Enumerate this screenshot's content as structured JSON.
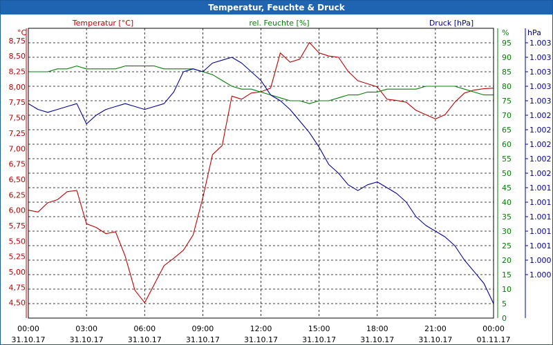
{
  "window": {
    "title": "Temperatur, Feuchte & Druck"
  },
  "chart_data": {
    "type": "line",
    "title": "Temperatur, Feuchte & Druck",
    "x_ticks": [
      {
        "time": "00:00",
        "date": "31.10.17"
      },
      {
        "time": "03:00",
        "date": "31.10.17"
      },
      {
        "time": "06:00",
        "date": "31.10.17"
      },
      {
        "time": "09:00",
        "date": "31.10.17"
      },
      {
        "time": "12:00",
        "date": "31.10.17"
      },
      {
        "time": "15:00",
        "date": "31.10.17"
      },
      {
        "time": "18:00",
        "date": "31.10.17"
      },
      {
        "time": "21:00",
        "date": "31.10.17"
      },
      {
        "time": "00:00",
        "date": "01.11.17"
      }
    ],
    "xlim_hours": [
      0,
      24
    ],
    "grid": true,
    "axes": {
      "temperature": {
        "label": "Temperatur [°C]",
        "unit": "°C",
        "color": "#c00000",
        "ylim": [
          4.25,
          8.95
        ],
        "ticks": [
          "8,75",
          "8,50",
          "8,25",
          "8,00",
          "7,75",
          "7,50",
          "7,25",
          "7,00",
          "6,75",
          "6,50",
          "6,25",
          "6,00",
          "5,75",
          "5,50",
          "5,25",
          "5,00",
          "4,75",
          "4,50"
        ],
        "tick_values": [
          8.75,
          8.5,
          8.25,
          8.0,
          7.75,
          7.5,
          7.25,
          7.0,
          6.75,
          6.5,
          6.25,
          6.0,
          5.75,
          5.5,
          5.25,
          5.0,
          4.75,
          4.5
        ]
      },
      "humidity": {
        "label": "rel. Feuchte [%]",
        "unit": "%",
        "color": "#008000",
        "ylim": [
          0,
          100
        ],
        "ticks": [
          "95",
          "90",
          "85",
          "80",
          "75",
          "70",
          "65",
          "60",
          "55",
          "50",
          "45",
          "40",
          "35",
          "30",
          "25",
          "20",
          "15",
          "10",
          "5",
          "0"
        ],
        "tick_values": [
          95,
          90,
          85,
          80,
          75,
          70,
          65,
          60,
          55,
          50,
          45,
          40,
          35,
          30,
          25,
          20,
          15,
          10,
          5,
          0
        ]
      },
      "pressure": {
        "label": "Druck [hPa]",
        "unit": "hPa",
        "color": "#0000a0",
        "ylim": [
          0,
          100
        ],
        "ticks": [
          "1.003",
          "1.003",
          "1.003",
          "1.003",
          "1.003",
          "1.002",
          "1.002",
          "1.002",
          "1.002",
          "1.002",
          "1.001",
          "1.001",
          "1.001",
          "1.001",
          "1.001",
          "1.000",
          "1.000"
        ],
        "tick_values": [
          95,
          90,
          85,
          80,
          75,
          70,
          65,
          60,
          55,
          50,
          45,
          40,
          35,
          30,
          25,
          20,
          15
        ]
      }
    },
    "series": [
      {
        "name": "Temperatur [°C]",
        "axis": "temperature",
        "color": "#c00000",
        "x": [
          0,
          0.5,
          1,
          1.5,
          2,
          2.5,
          3,
          3.5,
          4,
          4.5,
          5,
          5.5,
          6,
          6.5,
          7,
          7.5,
          8,
          8.5,
          9,
          9.5,
          10,
          10.5,
          11,
          11.5,
          12,
          12.5,
          13,
          13.5,
          14,
          14.5,
          15,
          15.5,
          16,
          16.5,
          17,
          17.5,
          18,
          18.5,
          19,
          19.5,
          20,
          20.5,
          21,
          21.5,
          22,
          22.5,
          23,
          23.5,
          24
        ],
        "values": [
          6.0,
          5.97,
          6.12,
          6.17,
          6.3,
          6.32,
          5.78,
          5.72,
          5.62,
          5.65,
          5.25,
          4.7,
          4.5,
          4.8,
          5.1,
          5.22,
          5.35,
          5.6,
          6.2,
          6.9,
          7.05,
          7.85,
          7.8,
          7.9,
          7.92,
          7.98,
          8.55,
          8.4,
          8.45,
          8.72,
          8.55,
          8.5,
          8.48,
          8.25,
          8.1,
          8.05,
          8.0,
          7.8,
          7.78,
          7.75,
          7.62,
          7.55,
          7.48,
          7.55,
          7.75,
          7.9,
          7.95,
          7.97,
          7.98
        ]
      },
      {
        "name": "rel. Feuchte [%]",
        "axis": "humidity",
        "color": "#008000",
        "x": [
          0,
          0.5,
          1,
          1.5,
          2,
          2.5,
          3,
          3.5,
          4,
          4.5,
          5,
          5.5,
          6,
          6.5,
          7,
          7.5,
          8,
          8.5,
          9,
          9.5,
          10,
          10.5,
          11,
          11.5,
          12,
          12.5,
          13,
          13.5,
          14,
          14.5,
          15,
          15.5,
          16,
          16.5,
          17,
          17.5,
          18,
          18.5,
          19,
          19.5,
          20,
          20.5,
          21,
          21.5,
          22,
          22.5,
          23,
          23.5,
          24
        ],
        "values": [
          85,
          85,
          85,
          86,
          86,
          87,
          86,
          86,
          86,
          86,
          87,
          87,
          87,
          87,
          86,
          86,
          86,
          86,
          85,
          84,
          82,
          80,
          79,
          79,
          78,
          77,
          76,
          75,
          75,
          74,
          75,
          75,
          76,
          77,
          77,
          78,
          78,
          79,
          79,
          79,
          79,
          80,
          80,
          80,
          80,
          79,
          78,
          77,
          77
        ]
      },
      {
        "name": "Druck [hPa]",
        "axis": "pressure",
        "color": "#0000a0",
        "x": [
          0,
          0.5,
          1,
          1.5,
          2,
          2.5,
          3,
          3.5,
          4,
          4.5,
          5,
          5.5,
          6,
          6.5,
          7,
          7.5,
          8,
          8.5,
          9,
          9.5,
          10,
          10.5,
          11,
          11.5,
          12,
          12.5,
          13,
          13.5,
          14,
          14.5,
          15,
          15.5,
          16,
          16.5,
          17,
          17.5,
          18,
          18.5,
          19,
          19.5,
          20,
          20.5,
          21,
          21.5,
          22,
          22.5,
          23,
          23.5,
          24
        ],
        "values": [
          74,
          72,
          71,
          72,
          73,
          74,
          67,
          70,
          72,
          73,
          74,
          73,
          72,
          73,
          74,
          78,
          85,
          86,
          85,
          88,
          89,
          90,
          88,
          85,
          82,
          77,
          75,
          72,
          68,
          64,
          59,
          53,
          50,
          46,
          44,
          46,
          47,
          45,
          43,
          40,
          35,
          32,
          30,
          28,
          25,
          20,
          16,
          12,
          5
        ]
      }
    ]
  }
}
